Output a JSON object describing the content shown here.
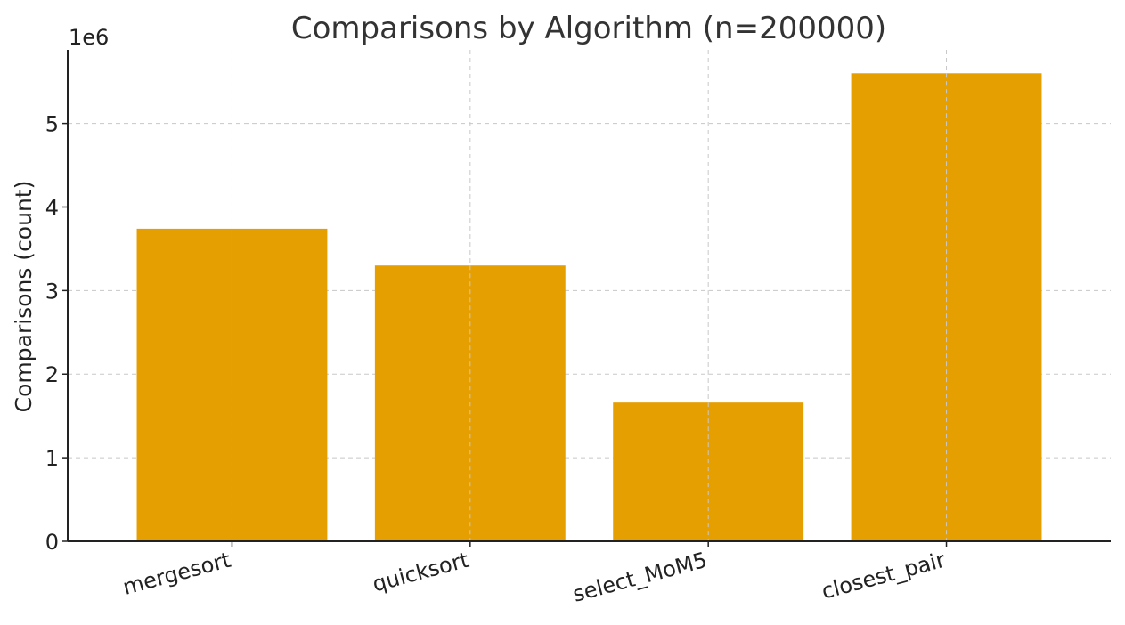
{
  "chart_data": {
    "type": "bar",
    "title": "Comparisons by Algorithm (n=200000)",
    "xlabel": "",
    "ylabel": "Comparisons (count)",
    "y_offset_label": "1e6",
    "categories": [
      "mergesort",
      "quicksort",
      "select_MoM5",
      "closest_pair"
    ],
    "values": [
      3740000,
      3300000,
      1660000,
      5600000
    ],
    "ylim": [
      0,
      5880000
    ],
    "y_ticks": [
      0,
      1000000,
      2000000,
      3000000,
      4000000,
      5000000
    ],
    "y_tick_labels": [
      "0",
      "1",
      "2",
      "3",
      "4",
      "5"
    ],
    "grid": true,
    "bar_color": "#E69F00"
  }
}
